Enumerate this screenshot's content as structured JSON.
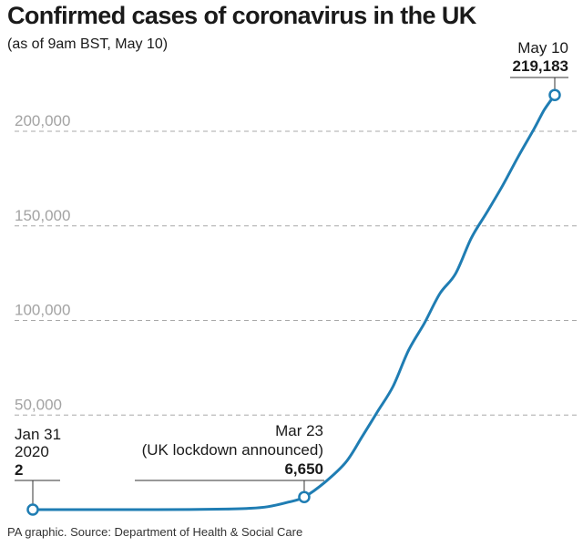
{
  "title": "Confirmed cases of coronavirus in the UK",
  "subtitle": "(as of 9am BST, May 10)",
  "source": "PA graphic. Source: Department of Health & Social Care",
  "colors": {
    "line": "#1f7db3",
    "grid": "#a8a8a8",
    "tick": "#a3a3a3",
    "text": "#1a1a1a"
  },
  "chart_data": {
    "type": "line",
    "title": "Confirmed cases of coronavirus in the UK",
    "subtitle": "(as of 9am BST, May 10)",
    "xlabel": "",
    "ylabel": "",
    "xlim": [
      "2020-01-31",
      "2020-05-10"
    ],
    "ylim": [
      0,
      200000
    ],
    "grid": true,
    "yticks": [
      50000,
      100000,
      150000,
      200000
    ],
    "ytick_labels": [
      "50,000",
      "100,000",
      "150,000",
      "200,000"
    ],
    "series": [
      {
        "x": [
          "2020-01-31",
          "2020-02-10",
          "2020-02-20",
          "2020-03-01",
          "2020-03-08",
          "2020-03-12",
          "2020-03-16",
          "2020-03-20",
          "2020-03-23",
          "2020-03-27",
          "2020-03-31",
          "2020-04-03",
          "2020-04-06",
          "2020-04-09",
          "2020-04-12",
          "2020-04-15",
          "2020-04-18",
          "2020-04-21",
          "2020-04-24",
          "2020-04-27",
          "2020-04-30",
          "2020-05-03",
          "2020-05-06",
          "2020-05-08",
          "2020-05-10"
        ],
        "values": [
          2,
          9,
          9,
          35,
          273,
          590,
          1543,
          3983,
          6650,
          14543,
          25150,
          38168,
          51608,
          65077,
          84279,
          98476,
          114217,
          124743,
          143464,
          157149,
          171253,
          186599,
          201101,
          211364,
          219183
        ]
      }
    ],
    "annotations": [
      {
        "x": "2020-01-31",
        "date_label": "Jan 31",
        "year_label": "2020",
        "value_label": "2"
      },
      {
        "x": "2020-03-23",
        "date_label": "Mar 23",
        "note": "(UK lockdown announced)",
        "value_label": "6,650"
      },
      {
        "x": "2020-05-10",
        "date_label": "May 10",
        "value_label": "219,183"
      }
    ]
  }
}
